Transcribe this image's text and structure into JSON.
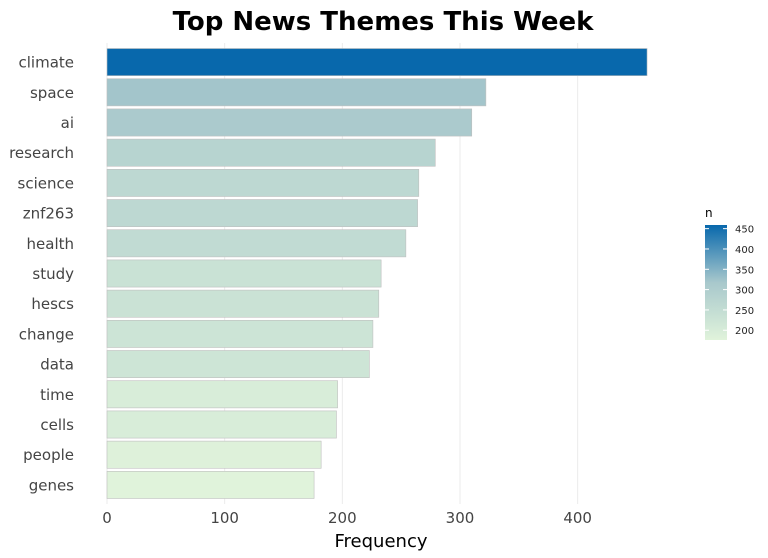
{
  "chart_data": {
    "type": "bar",
    "orientation": "horizontal",
    "title": "Top News Themes This Week",
    "xlabel": "Frequency",
    "ylabel": "",
    "categories": [
      "climate",
      "space",
      "ai",
      "research",
      "science",
      "znf263",
      "health",
      "study",
      "hescs",
      "change",
      "data",
      "time",
      "cells",
      "people",
      "genes"
    ],
    "values": [
      459,
      322,
      310,
      279,
      265,
      264,
      254,
      233,
      231,
      226,
      223,
      196,
      195,
      182,
      176
    ],
    "xlim": [
      0,
      470
    ],
    "xticks": [
      0,
      100,
      200,
      300,
      400
    ],
    "grid": true,
    "legend": {
      "title": "n",
      "position": "right",
      "ticks": [
        450,
        400,
        350,
        300,
        250,
        200
      ],
      "range": [
        176,
        459
      ]
    },
    "colors": {
      "low": "#e0f3db",
      "mid": "#a8c8cc",
      "high": "#0868ac",
      "grid": "#ebebeb",
      "bar_stroke": "#bfbfbf"
    }
  }
}
